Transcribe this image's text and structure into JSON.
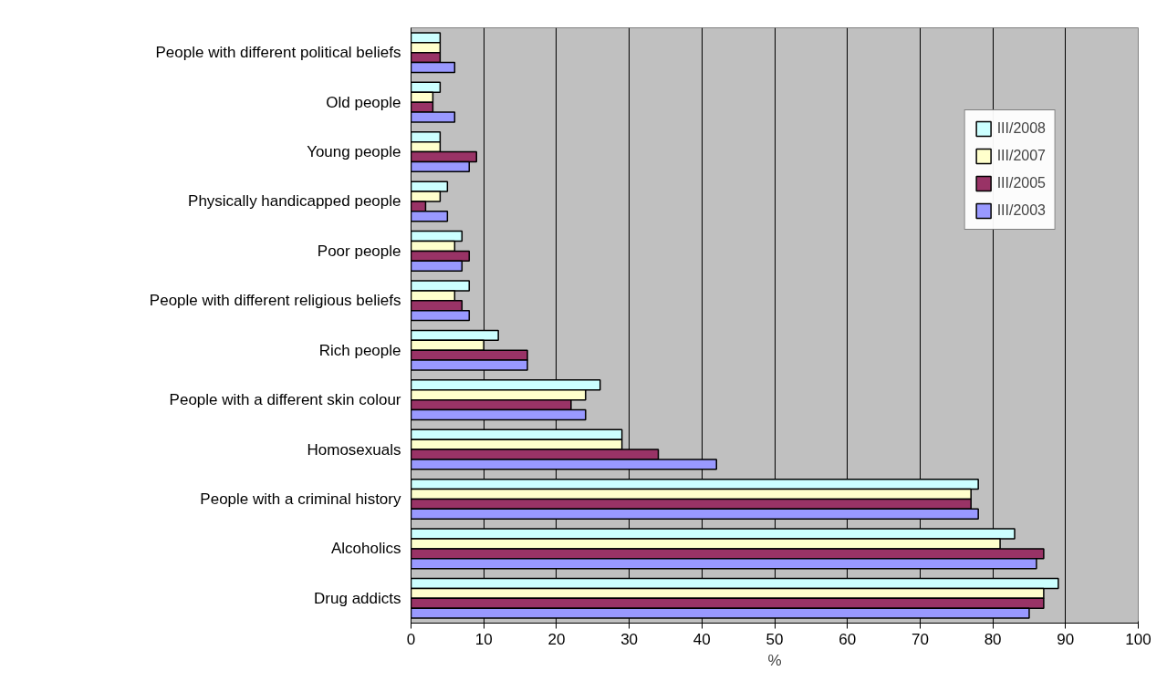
{
  "chart_data": {
    "type": "bar",
    "orientation": "horizontal",
    "xlabel": "%",
    "categories": [
      "People with different political beliefs",
      "Old people",
      "Young people",
      "Physically handicapped people",
      "Poor people",
      "People with different religious beliefs",
      "Rich people",
      "People with a different skin colour",
      "Homosexuals",
      "People with a criminal history",
      "Alcoholics",
      "Drug addicts"
    ],
    "series": [
      {
        "name": "III/2008",
        "color": "#ccffff",
        "values": [
          4,
          4,
          4,
          5,
          7,
          8,
          12,
          26,
          29,
          78,
          83,
          89
        ]
      },
      {
        "name": "III/2007",
        "color": "#ffffcc",
        "values": [
          4,
          3,
          4,
          4,
          6,
          6,
          10,
          24,
          29,
          77,
          81,
          87
        ]
      },
      {
        "name": "III/2005",
        "color": "#993366",
        "values": [
          4,
          3,
          9,
          2,
          8,
          7,
          16,
          22,
          34,
          77,
          87,
          87
        ]
      },
      {
        "name": "III/2003",
        "color": "#9999ff",
        "values": [
          6,
          6,
          8,
          5,
          7,
          8,
          16,
          24,
          42,
          78,
          86,
          85
        ]
      }
    ],
    "xlim": [
      0,
      100
    ],
    "xticks": [
      0,
      10,
      20,
      30,
      40,
      50,
      60,
      70,
      80,
      90,
      100
    ],
    "grid": "x",
    "legend": "top right"
  }
}
